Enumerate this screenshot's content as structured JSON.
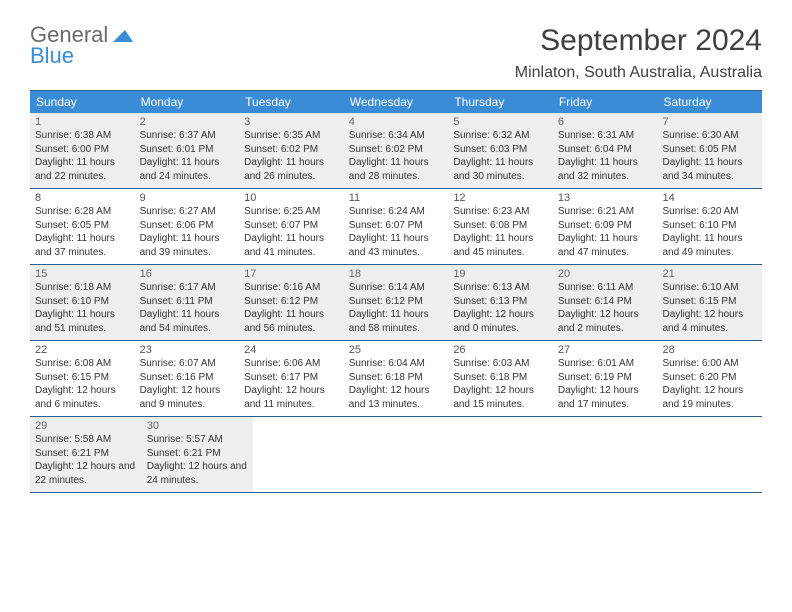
{
  "logo": {
    "word1": "General",
    "word2": "Blue"
  },
  "title": "September 2024",
  "location": "Minlaton, South Australia, Australia",
  "colors": {
    "header_bg": "#3b8cd6",
    "header_text": "#ffffff",
    "border": "#2c5f8d",
    "alt_bg": "#eeeeee",
    "text": "#333333",
    "title_color": "#404040"
  },
  "weekdays": [
    "Sunday",
    "Monday",
    "Tuesday",
    "Wednesday",
    "Thursday",
    "Friday",
    "Saturday"
  ],
  "weeks": [
    {
      "alt": true,
      "days": [
        {
          "n": "1",
          "sunrise": "6:38 AM",
          "sunset": "6:00 PM",
          "daylight": "11 hours and 22 minutes."
        },
        {
          "n": "2",
          "sunrise": "6:37 AM",
          "sunset": "6:01 PM",
          "daylight": "11 hours and 24 minutes."
        },
        {
          "n": "3",
          "sunrise": "6:35 AM",
          "sunset": "6:02 PM",
          "daylight": "11 hours and 26 minutes."
        },
        {
          "n": "4",
          "sunrise": "6:34 AM",
          "sunset": "6:02 PM",
          "daylight": "11 hours and 28 minutes."
        },
        {
          "n": "5",
          "sunrise": "6:32 AM",
          "sunset": "6:03 PM",
          "daylight": "11 hours and 30 minutes."
        },
        {
          "n": "6",
          "sunrise": "6:31 AM",
          "sunset": "6:04 PM",
          "daylight": "11 hours and 32 minutes."
        },
        {
          "n": "7",
          "sunrise": "6:30 AM",
          "sunset": "6:05 PM",
          "daylight": "11 hours and 34 minutes."
        }
      ]
    },
    {
      "alt": false,
      "days": [
        {
          "n": "8",
          "sunrise": "6:28 AM",
          "sunset": "6:05 PM",
          "daylight": "11 hours and 37 minutes."
        },
        {
          "n": "9",
          "sunrise": "6:27 AM",
          "sunset": "6:06 PM",
          "daylight": "11 hours and 39 minutes."
        },
        {
          "n": "10",
          "sunrise": "6:25 AM",
          "sunset": "6:07 PM",
          "daylight": "11 hours and 41 minutes."
        },
        {
          "n": "11",
          "sunrise": "6:24 AM",
          "sunset": "6:07 PM",
          "daylight": "11 hours and 43 minutes."
        },
        {
          "n": "12",
          "sunrise": "6:23 AM",
          "sunset": "6:08 PM",
          "daylight": "11 hours and 45 minutes."
        },
        {
          "n": "13",
          "sunrise": "6:21 AM",
          "sunset": "6:09 PM",
          "daylight": "11 hours and 47 minutes."
        },
        {
          "n": "14",
          "sunrise": "6:20 AM",
          "sunset": "6:10 PM",
          "daylight": "11 hours and 49 minutes."
        }
      ]
    },
    {
      "alt": true,
      "days": [
        {
          "n": "15",
          "sunrise": "6:18 AM",
          "sunset": "6:10 PM",
          "daylight": "11 hours and 51 minutes."
        },
        {
          "n": "16",
          "sunrise": "6:17 AM",
          "sunset": "6:11 PM",
          "daylight": "11 hours and 54 minutes."
        },
        {
          "n": "17",
          "sunrise": "6:16 AM",
          "sunset": "6:12 PM",
          "daylight": "11 hours and 56 minutes."
        },
        {
          "n": "18",
          "sunrise": "6:14 AM",
          "sunset": "6:12 PM",
          "daylight": "11 hours and 58 minutes."
        },
        {
          "n": "19",
          "sunrise": "6:13 AM",
          "sunset": "6:13 PM",
          "daylight": "12 hours and 0 minutes."
        },
        {
          "n": "20",
          "sunrise": "6:11 AM",
          "sunset": "6:14 PM",
          "daylight": "12 hours and 2 minutes."
        },
        {
          "n": "21",
          "sunrise": "6:10 AM",
          "sunset": "6:15 PM",
          "daylight": "12 hours and 4 minutes."
        }
      ]
    },
    {
      "alt": false,
      "days": [
        {
          "n": "22",
          "sunrise": "6:08 AM",
          "sunset": "6:15 PM",
          "daylight": "12 hours and 6 minutes."
        },
        {
          "n": "23",
          "sunrise": "6:07 AM",
          "sunset": "6:16 PM",
          "daylight": "12 hours and 9 minutes."
        },
        {
          "n": "24",
          "sunrise": "6:06 AM",
          "sunset": "6:17 PM",
          "daylight": "12 hours and 11 minutes."
        },
        {
          "n": "25",
          "sunrise": "6:04 AM",
          "sunset": "6:18 PM",
          "daylight": "12 hours and 13 minutes."
        },
        {
          "n": "26",
          "sunrise": "6:03 AM",
          "sunset": "6:18 PM",
          "daylight": "12 hours and 15 minutes."
        },
        {
          "n": "27",
          "sunrise": "6:01 AM",
          "sunset": "6:19 PM",
          "daylight": "12 hours and 17 minutes."
        },
        {
          "n": "28",
          "sunrise": "6:00 AM",
          "sunset": "6:20 PM",
          "daylight": "12 hours and 19 minutes."
        }
      ]
    },
    {
      "alt": true,
      "days": [
        {
          "n": "29",
          "sunrise": "5:58 AM",
          "sunset": "6:21 PM",
          "daylight": "12 hours and 22 minutes."
        },
        {
          "n": "30",
          "sunrise": "5:57 AM",
          "sunset": "6:21 PM",
          "daylight": "12 hours and 24 minutes."
        },
        null,
        null,
        null,
        null,
        null
      ]
    }
  ],
  "labels": {
    "sunrise": "Sunrise: ",
    "sunset": "Sunset: ",
    "daylight": "Daylight: "
  }
}
